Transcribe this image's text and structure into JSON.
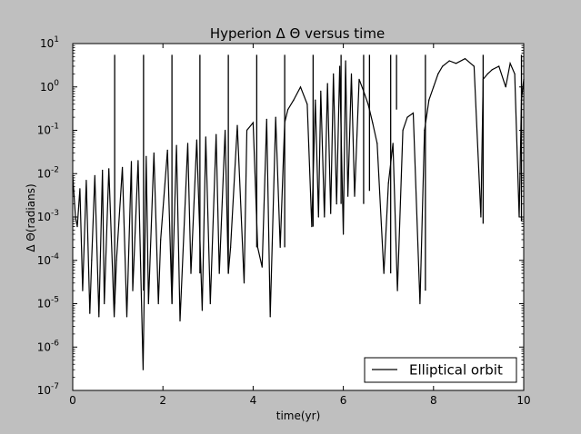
{
  "chart_data": {
    "type": "line",
    "title": "Hyperion Δ Θ versus time",
    "xlabel": "time(yr)",
    "ylabel": "Δ Θ(radians)",
    "xlim": [
      0,
      10
    ],
    "ylim": [
      1e-07,
      10
    ],
    "y_scale": "log",
    "grid": false,
    "legend_position": "lower-right",
    "x_ticks": [
      0,
      2,
      4,
      6,
      8,
      10
    ],
    "x_tick_labels": [
      "0",
      "2",
      "4",
      "6",
      "8",
      "10"
    ],
    "y_ticks": [
      -7,
      -6,
      -5,
      -4,
      -3,
      -2,
      -1,
      0,
      1
    ],
    "y_tick_labels": [
      {
        "base": "10",
        "exp": "-7"
      },
      {
        "base": "10",
        "exp": "-6"
      },
      {
        "base": "10",
        "exp": "-5"
      },
      {
        "base": "10",
        "exp": "-4"
      },
      {
        "base": "10",
        "exp": "-3"
      },
      {
        "base": "10",
        "exp": "-2"
      },
      {
        "base": "10",
        "exp": "-1"
      },
      {
        "base": "10",
        "exp": "0"
      },
      {
        "base": "10",
        "exp": "1"
      }
    ],
    "series": [
      {
        "name": "Elliptical orbit",
        "color": "#000000",
        "x": [
          0.0,
          0.06,
          0.1,
          0.16,
          0.22,
          0.3,
          0.38,
          0.42,
          0.49,
          0.58,
          0.66,
          0.7,
          0.8,
          0.92,
          0.97,
          1.1,
          1.2,
          1.3,
          1.33,
          1.45,
          1.56,
          1.63,
          1.68,
          1.8,
          1.9,
          1.95,
          2.1,
          2.2,
          2.3,
          2.38,
          2.55,
          2.62,
          2.75,
          2.87,
          2.95,
          3.05,
          3.18,
          3.25,
          3.38,
          3.45,
          3.5,
          3.65,
          3.8,
          3.86,
          4.0,
          4.1,
          4.2,
          4.3,
          4.38,
          4.5,
          4.6,
          4.7,
          4.77,
          4.9,
          5.05,
          5.2,
          5.3,
          5.38,
          5.45,
          5.5,
          5.58,
          5.65,
          5.72,
          5.78,
          5.85,
          5.92,
          6.0,
          6.05,
          6.1,
          6.18,
          6.25,
          6.35,
          6.45,
          6.55,
          6.65,
          6.75,
          6.9,
          7.0,
          7.1,
          7.2,
          7.32,
          7.42,
          7.55,
          7.7,
          7.8,
          7.9,
          8.0,
          8.1,
          8.2,
          8.35,
          8.5,
          8.7,
          8.9,
          9.05,
          9.1,
          9.2,
          9.3,
          9.45,
          9.6,
          9.7,
          9.8,
          9.9,
          9.95,
          10.0
        ],
        "y": [
          0.009,
          0.001,
          0.0006,
          0.0045,
          2e-05,
          0.007,
          6e-06,
          0.0001,
          0.009,
          5e-06,
          0.012,
          1e-05,
          0.013,
          5e-06,
          0.0001,
          0.014,
          5e-06,
          0.019,
          2e-05,
          0.02,
          3e-07,
          0.025,
          1e-05,
          0.03,
          1e-05,
          0.0003,
          0.035,
          1e-05,
          0.045,
          4e-06,
          0.05,
          5e-05,
          0.06,
          7e-06,
          0.07,
          1e-05,
          0.08,
          5e-05,
          0.1,
          5e-05,
          0.0002,
          0.13,
          3e-05,
          0.1,
          0.15,
          0.0002,
          7e-05,
          0.18,
          5e-06,
          0.2,
          0.0002,
          0.15,
          0.3,
          0.5,
          1.0,
          0.4,
          0.0006,
          0.5,
          0.001,
          0.8,
          0.001,
          1.2,
          0.0012,
          2.0,
          0.002,
          3.0,
          0.0004,
          4.0,
          0.003,
          2.0,
          0.003,
          1.5,
          0.8,
          0.4,
          0.15,
          0.05,
          5e-05,
          0.006,
          0.05,
          2e-05,
          0.1,
          0.2,
          0.25,
          1e-05,
          0.1,
          0.5,
          1.0,
          2.0,
          3.0,
          4.0,
          3.5,
          4.5,
          3.0,
          0.001,
          1.5,
          2.0,
          2.5,
          3.0,
          1.0,
          3.5,
          2.0,
          0.001,
          0.5,
          1.5
        ]
      }
    ],
    "spikes": [
      {
        "x": 0.93,
        "low": 1e-05,
        "high": 5.5
      },
      {
        "x": 1.57,
        "low": 2e-05,
        "high": 5.5
      },
      {
        "x": 2.2,
        "low": 1e-05,
        "high": 5.5
      },
      {
        "x": 2.82,
        "low": 5e-05,
        "high": 5.5
      },
      {
        "x": 3.45,
        "low": 5e-05,
        "high": 5.5
      },
      {
        "x": 4.08,
        "low": 0.0002,
        "high": 5.5
      },
      {
        "x": 4.7,
        "low": 0.0002,
        "high": 5.5
      },
      {
        "x": 5.33,
        "low": 0.0006,
        "high": 5.5
      },
      {
        "x": 5.95,
        "low": 0.002,
        "high": 5.5
      },
      {
        "x": 6.45,
        "low": 0.002,
        "high": 5.5
      },
      {
        "x": 6.58,
        "low": 0.004,
        "high": 5.5
      },
      {
        "x": 7.05,
        "low": 5e-05,
        "high": 5.5
      },
      {
        "x": 7.18,
        "low": 0.3,
        "high": 5.5
      },
      {
        "x": 7.82,
        "low": 2e-05,
        "high": 5.5
      },
      {
        "x": 9.1,
        "low": 0.0007,
        "high": 5.5
      },
      {
        "x": 9.95,
        "low": 0.0008,
        "high": 5.5
      }
    ]
  }
}
